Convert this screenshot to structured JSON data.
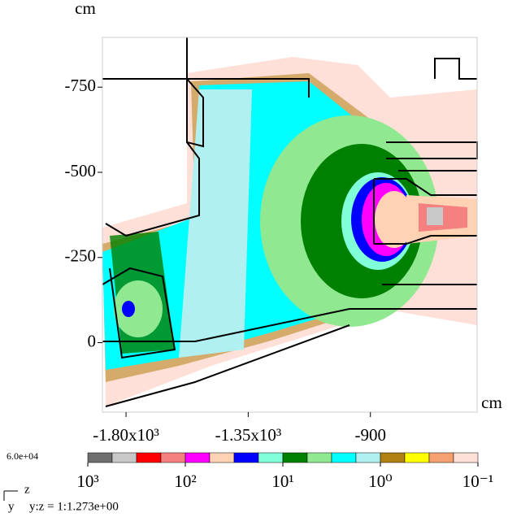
{
  "chart_data": {
    "type": "heatmap",
    "x_label": "cm",
    "y_label": "cm",
    "xlim": [
      -1887,
      -507
    ],
    "ylim": [
      -896,
      204
    ],
    "xticks": [
      {
        "value": -1800,
        "label": "-1.80x10³"
      },
      {
        "value": -1350,
        "label": "-1.35x10³"
      },
      -900
    ],
    "yticks": [
      -750,
      -500,
      -250,
      0
    ],
    "colorbar": {
      "max_label": "6.0e+04",
      "log_scale": true,
      "lim": [
        1000,
        0.1
      ],
      "ticks": [
        {
          "value": 1000,
          "label": "10³"
        },
        {
          "value": 100,
          "label": "10²"
        },
        {
          "value": 10,
          "label": "10¹"
        },
        {
          "value": 1,
          "label": "10⁰"
        },
        {
          "value": 0.1,
          "label": "10⁻¹"
        }
      ],
      "colors": [
        "#6e6e6e",
        "#c8c8c8",
        "#ff0000",
        "#f58080",
        "#ff00ff",
        "#ffd2b4",
        "#0000ff",
        "#80ffd8",
        "#008000",
        "#90e890",
        "#00ffff",
        "#b0f0f0",
        "#b08010",
        "#ffff00",
        "#f4a070",
        "#ffe0d8"
      ]
    },
    "axis_x_name": "z",
    "axis_y_name": "y",
    "aspect_note": "y:z = 1:1.273e+00"
  }
}
